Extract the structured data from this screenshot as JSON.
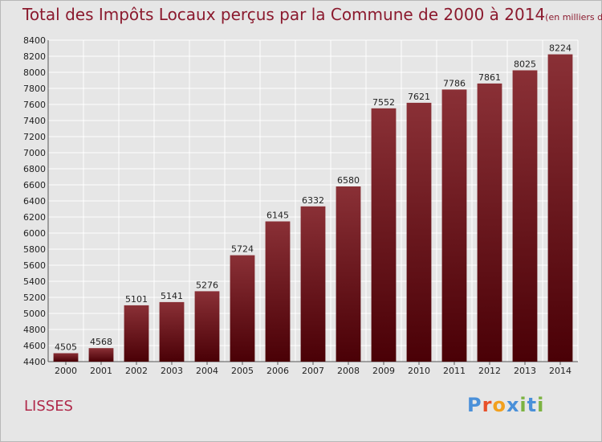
{
  "header": {
    "title": "Total des Impôts Locaux perçus par la Commune de 2000 à 2014",
    "unit": "(en milliers d'€)"
  },
  "commune_name": "LISSES",
  "logo": {
    "text": "Proxiti",
    "letters": [
      "P",
      "r",
      "o",
      "x",
      "i",
      "t",
      "i"
    ],
    "colors": [
      "#4a90d9",
      "#e8502a",
      "#f2a01e",
      "#4a90d9",
      "#7cb342",
      "#4a90d9",
      "#7cb342"
    ]
  },
  "colors": {
    "bar_top": "#8a3036",
    "bar_bottom": "#4a0006",
    "title": "#8b1a2e",
    "background": "#e6e6e6"
  },
  "chart_data": {
    "type": "bar",
    "title": "Total des Impôts Locaux perçus par la Commune de 2000 à 2014",
    "subtitle": "(en milliers d'€)",
    "categories": [
      "2000",
      "2001",
      "2002",
      "2003",
      "2004",
      "2005",
      "2006",
      "2007",
      "2008",
      "2009",
      "2010",
      "2011",
      "2012",
      "2013",
      "2014"
    ],
    "values": [
      4505,
      4568,
      5101,
      5141,
      5276,
      5724,
      6145,
      6332,
      6580,
      7552,
      7621,
      7786,
      7861,
      8025,
      8224
    ],
    "ylim": [
      4400,
      8400
    ],
    "yticks": [
      4400,
      4600,
      4800,
      5000,
      5200,
      5400,
      5600,
      5800,
      6000,
      6200,
      6400,
      6600,
      6800,
      7000,
      7200,
      7400,
      7600,
      7800,
      8000,
      8200,
      8400
    ],
    "xlabel": "",
    "ylabel": "",
    "grid": true,
    "legend": "none"
  }
}
